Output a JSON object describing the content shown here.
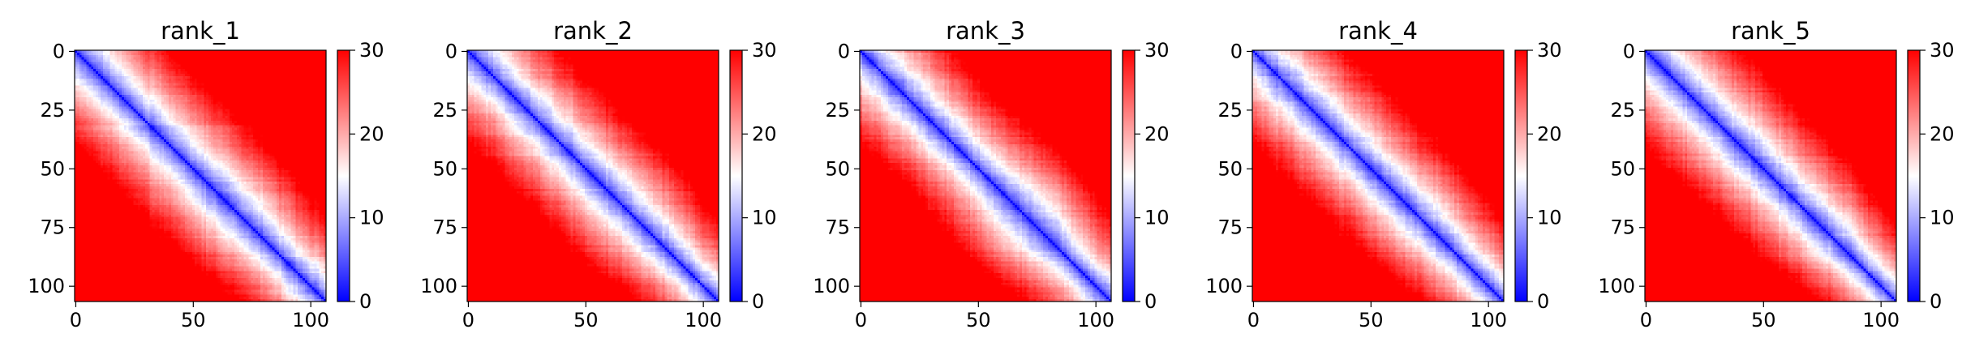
{
  "chart_data": [
    {
      "type": "heatmap",
      "title": "rank_1",
      "matrix_size": 107,
      "xlim": [
        0,
        106
      ],
      "ylim": [
        106,
        0
      ],
      "xticks": [
        0,
        50,
        100
      ],
      "xtick_labels": [
        "0",
        "50",
        "100"
      ],
      "yticks": [
        0,
        25,
        50,
        75,
        100
      ],
      "ytick_labels": [
        "0",
        "25",
        "50",
        "75",
        "100"
      ],
      "colorbar": {
        "min": 0,
        "max": 30,
        "ticks": [
          0,
          10,
          20,
          30
        ],
        "tick_labels": [
          "0",
          "10",
          "20",
          "30"
        ],
        "colors": [
          "#0000ff",
          "#ffffff",
          "#ff0000"
        ]
      },
      "pattern": "pairwise distance matrix: ~0 on diagonal rising to >=30 at far off-diagonal corners"
    },
    {
      "type": "heatmap",
      "title": "rank_2",
      "matrix_size": 107,
      "xlim": [
        0,
        106
      ],
      "ylim": [
        106,
        0
      ],
      "xticks": [
        0,
        50,
        100
      ],
      "xtick_labels": [
        "0",
        "50",
        "100"
      ],
      "yticks": [
        0,
        25,
        50,
        75,
        100
      ],
      "ytick_labels": [
        "0",
        "25",
        "50",
        "75",
        "100"
      ],
      "colorbar": {
        "min": 0,
        "max": 30,
        "ticks": [
          0,
          10,
          20,
          30
        ],
        "tick_labels": [
          "0",
          "10",
          "20",
          "30"
        ],
        "colors": [
          "#0000ff",
          "#ffffff",
          "#ff0000"
        ]
      },
      "pattern": "pairwise distance matrix: ~0 on diagonal rising to >=30 at far off-diagonal corners"
    },
    {
      "type": "heatmap",
      "title": "rank_3",
      "matrix_size": 107,
      "xlim": [
        0,
        106
      ],
      "ylim": [
        106,
        0
      ],
      "xticks": [
        0,
        50,
        100
      ],
      "xtick_labels": [
        "0",
        "50",
        "100"
      ],
      "yticks": [
        0,
        25,
        50,
        75,
        100
      ],
      "ytick_labels": [
        "0",
        "25",
        "50",
        "75",
        "100"
      ],
      "colorbar": {
        "min": 0,
        "max": 30,
        "ticks": [
          0,
          10,
          20,
          30
        ],
        "tick_labels": [
          "0",
          "10",
          "20",
          "30"
        ],
        "colors": [
          "#0000ff",
          "#ffffff",
          "#ff0000"
        ]
      },
      "pattern": "pairwise distance matrix: ~0 on diagonal rising to >=30 at far off-diagonal corners"
    },
    {
      "type": "heatmap",
      "title": "rank_4",
      "matrix_size": 107,
      "xlim": [
        0,
        106
      ],
      "ylim": [
        106,
        0
      ],
      "xticks": [
        0,
        50,
        100
      ],
      "xtick_labels": [
        "0",
        "50",
        "100"
      ],
      "yticks": [
        0,
        25,
        50,
        75,
        100
      ],
      "ytick_labels": [
        "0",
        "25",
        "50",
        "75",
        "100"
      ],
      "colorbar": {
        "min": 0,
        "max": 30,
        "ticks": [
          0,
          10,
          20,
          30
        ],
        "tick_labels": [
          "0",
          "10",
          "20",
          "30"
        ],
        "colors": [
          "#0000ff",
          "#ffffff",
          "#ff0000"
        ]
      },
      "pattern": "pairwise distance matrix: ~0 on diagonal rising to >=30 at far off-diagonal corners"
    },
    {
      "type": "heatmap",
      "title": "rank_5",
      "matrix_size": 107,
      "xlim": [
        0,
        106
      ],
      "ylim": [
        106,
        0
      ],
      "xticks": [
        0,
        50,
        100
      ],
      "xtick_labels": [
        "0",
        "50",
        "100"
      ],
      "yticks": [
        0,
        25,
        50,
        75,
        100
      ],
      "ytick_labels": [
        "0",
        "25",
        "50",
        "75",
        "100"
      ],
      "colorbar": {
        "min": 0,
        "max": 30,
        "ticks": [
          0,
          10,
          20,
          30
        ],
        "tick_labels": [
          "0",
          "10",
          "20",
          "30"
        ],
        "colors": [
          "#0000ff",
          "#ffffff",
          "#ff0000"
        ]
      },
      "pattern": "pairwise distance matrix: ~0 on diagonal rising to >=30 at far off-diagonal corners"
    }
  ]
}
